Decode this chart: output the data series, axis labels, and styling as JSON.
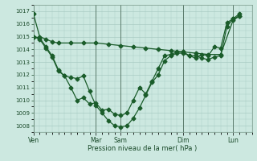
{
  "xlabel": "Pression niveau de la mer( hPa )",
  "background_color": "#cce8e0",
  "grid_color": "#aaccc4",
  "line_color": "#1a5c2a",
  "ylim": [
    1007.5,
    1017.5
  ],
  "yticks": [
    1008,
    1009,
    1010,
    1011,
    1012,
    1013,
    1014,
    1015,
    1016,
    1017
  ],
  "day_labels": [
    "Ven",
    "Mar",
    "Sam",
    "Dim",
    "Lun"
  ],
  "day_positions": [
    0,
    60,
    84,
    144,
    192
  ],
  "xlim": [
    0,
    210
  ],
  "series1_x": [
    0,
    6,
    12,
    18,
    24,
    36,
    48,
    60,
    72,
    84,
    96,
    108,
    120,
    132,
    144,
    156,
    168,
    180,
    192,
    198
  ],
  "series1_y": [
    1016.8,
    1015.0,
    1014.8,
    1014.6,
    1014.5,
    1014.5,
    1014.5,
    1014.5,
    1014.4,
    1014.3,
    1014.2,
    1014.1,
    1014.0,
    1013.9,
    1013.8,
    1013.7,
    1013.6,
    1013.6,
    1016.3,
    1016.6
  ],
  "series2_x": [
    0,
    6,
    12,
    18,
    24,
    30,
    36,
    42,
    48,
    54,
    60,
    66,
    72,
    78,
    84,
    90,
    96,
    102,
    108,
    114,
    120,
    126,
    132,
    138,
    144,
    150,
    156,
    162,
    168,
    174,
    180,
    186,
    192,
    198
  ],
  "series2_y": [
    1015.0,
    1014.9,
    1014.2,
    1013.5,
    1012.4,
    1011.9,
    1011.8,
    1011.7,
    1011.9,
    1010.7,
    1009.6,
    1009.0,
    1008.4,
    1008.0,
    1007.9,
    1008.0,
    1008.6,
    1009.4,
    1010.4,
    1011.4,
    1012.0,
    1013.1,
    1013.5,
    1013.7,
    1013.7,
    1013.5,
    1013.5,
    1013.3,
    1013.2,
    1013.4,
    1013.5,
    1015.8,
    1016.4,
    1016.6
  ],
  "series3_x": [
    0,
    6,
    12,
    18,
    24,
    30,
    36,
    42,
    48,
    54,
    60,
    66,
    72,
    78,
    84,
    90,
    96,
    102,
    108,
    114,
    120,
    126,
    132,
    138,
    144,
    150,
    156,
    162,
    168,
    174,
    180,
    186,
    192,
    198
  ],
  "series3_y": [
    1015.0,
    1014.8,
    1014.1,
    1013.4,
    1012.3,
    1011.9,
    1011.0,
    1010.0,
    1010.2,
    1009.7,
    1009.8,
    1009.2,
    1009.3,
    1008.9,
    1008.8,
    1009.0,
    1010.0,
    1011.0,
    1010.5,
    1011.5,
    1012.5,
    1013.5,
    1013.6,
    1013.8,
    1013.8,
    1013.5,
    1013.3,
    1013.6,
    1013.5,
    1014.2,
    1014.1,
    1016.1,
    1016.4,
    1016.8
  ]
}
